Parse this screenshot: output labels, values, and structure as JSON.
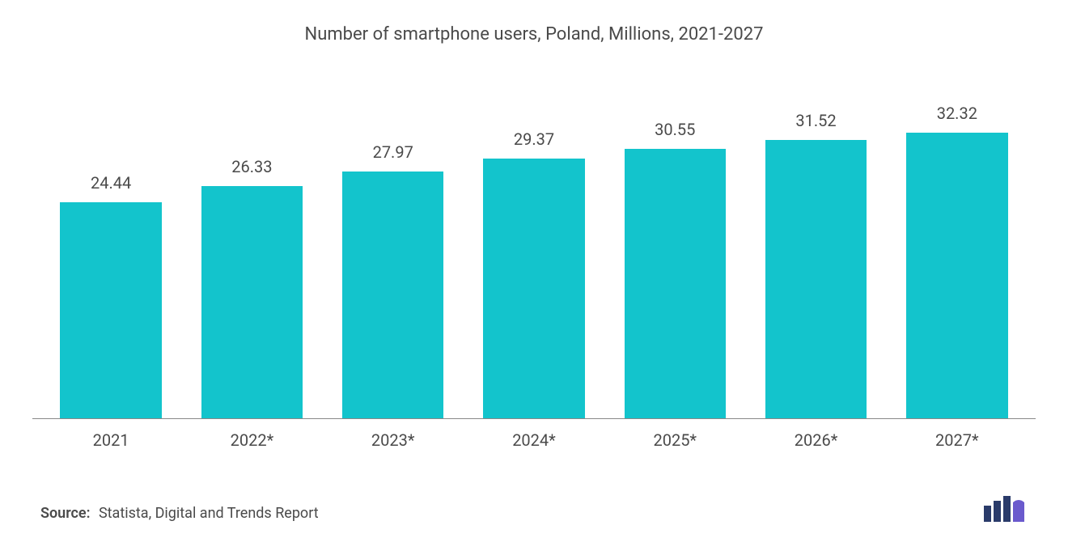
{
  "chart": {
    "type": "bar",
    "title": "Number of smartphone users, Poland, Millions, 2021-2027",
    "title_fontsize": 22,
    "title_color": "#4a4a4a",
    "categories": [
      "2021",
      "2022*",
      "2023*",
      "2024*",
      "2025*",
      "2026*",
      "2027*"
    ],
    "values": [
      24.44,
      26.33,
      27.97,
      29.37,
      30.55,
      31.52,
      32.32
    ],
    "value_labels": [
      "24.44",
      "26.33",
      "27.97",
      "29.37",
      "30.55",
      "31.52",
      "32.32"
    ],
    "bar_color": "#13c4cc",
    "value_label_color": "#4a4a4a",
    "value_label_fontsize": 20,
    "x_label_color": "#4a4a4a",
    "x_label_fontsize": 20,
    "ylim_max": 35,
    "baseline_color": "#888888",
    "background_color": "#ffffff",
    "bar_width_ratio": 0.72
  },
  "source": {
    "label": "Source:",
    "text": "Statista, Digital and Trends Report",
    "fontsize": 18,
    "color": "#4a4a4a"
  },
  "logo": {
    "name": "mordor-intelligence-logo",
    "bar_color": "#2a3b6a",
    "accent_color": "#6a5acd"
  }
}
